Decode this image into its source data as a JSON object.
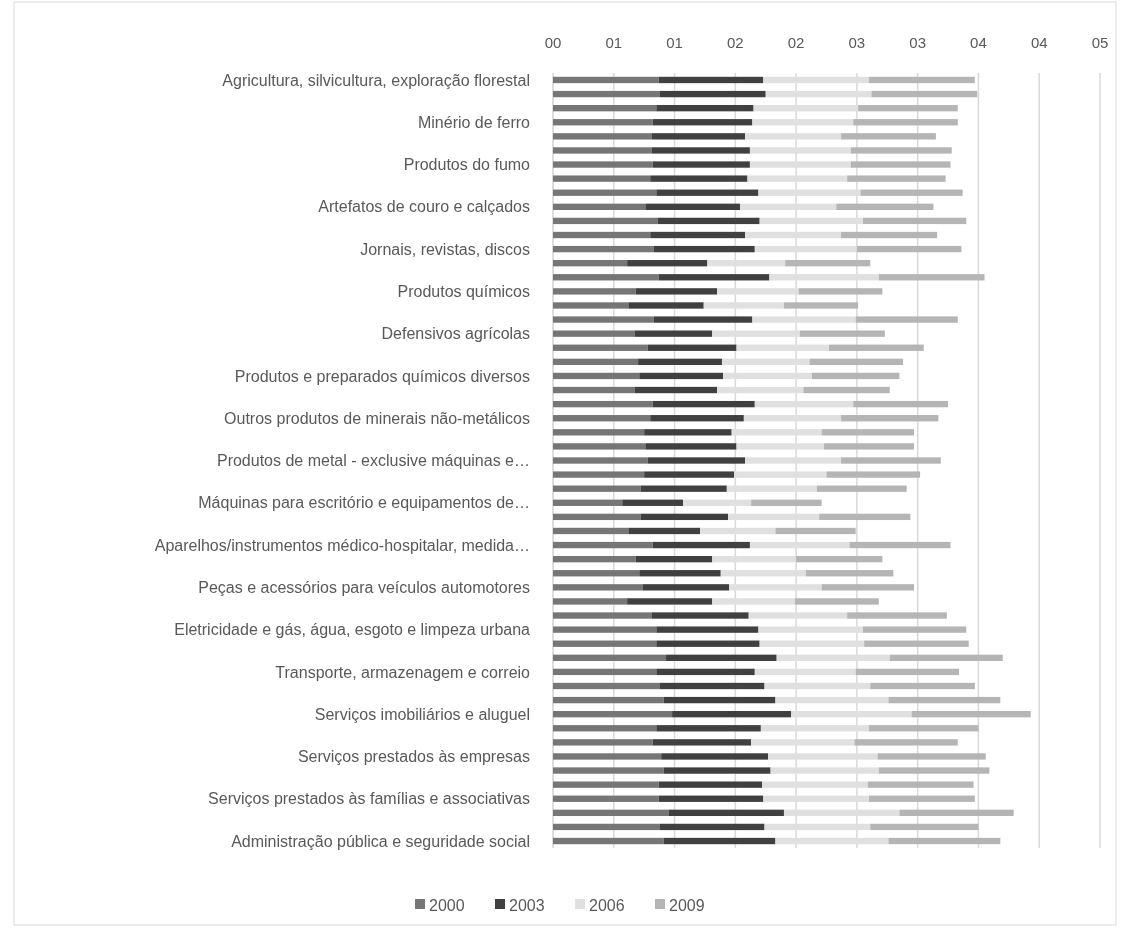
{
  "chart_data": {
    "type": "bar",
    "orientation": "horizontal",
    "stacked": true,
    "categories": [
      "Agricultura, silvicultura, exploração florestal",
      null,
      null,
      "Minério de ferro",
      null,
      null,
      "Produtos do fumo",
      null,
      null,
      "Artefatos de couro e calçados",
      null,
      null,
      "Jornais, revistas, discos",
      null,
      null,
      "Produtos  químicos",
      null,
      null,
      "Defensivos agrícolas",
      null,
      null,
      "Produtos e preparados químicos diversos",
      null,
      null,
      "Outros produtos de minerais não-metálicos",
      null,
      null,
      "Produtos de metal - exclusive máquinas e…",
      null,
      null,
      "Máquinas para escritório e equipamentos de…",
      null,
      null,
      "Aparelhos/instrumentos médico-hospitalar, medida…",
      null,
      null,
      "Peças e acessórios para veículos automotores",
      null,
      null,
      "Eletricidade e gás, água, esgoto e limpeza urbana",
      null,
      null,
      "Transporte, armazenagem e correio",
      null,
      null,
      "Serviços imobiliários e aluguel",
      null,
      null,
      "Serviços prestados às empresas",
      null,
      null,
      "Serviços prestados às famílias e associativas",
      null,
      null,
      "Administração pública e seguridade social"
    ],
    "series": [
      {
        "name": "2000",
        "color": "#767676",
        "values": [
          0.87,
          0.88,
          0.85,
          0.82,
          0.81,
          0.81,
          0.82,
          0.8,
          0.85,
          0.76,
          0.86,
          0.8,
          0.83,
          0.61,
          0.87,
          0.68,
          0.62,
          0.83,
          0.67,
          0.78,
          0.7,
          0.71,
          0.67,
          0.82,
          0.8,
          0.75,
          0.76,
          0.78,
          0.75,
          0.72,
          0.57,
          0.72,
          0.62,
          0.82,
          0.68,
          0.71,
          0.74,
          0.61,
          0.81,
          0.85,
          0.85,
          0.93,
          0.85,
          0.88,
          0.91,
          0.98,
          0.85,
          0.82,
          0.89,
          0.91,
          0.87,
          0.87,
          0.95,
          0.88,
          0.91
        ]
      },
      {
        "name": "2003",
        "color": "#404040",
        "values": [
          0.86,
          0.87,
          0.8,
          0.82,
          0.77,
          0.81,
          0.8,
          0.8,
          0.84,
          0.78,
          0.84,
          0.78,
          0.83,
          0.66,
          0.91,
          0.67,
          0.62,
          0.81,
          0.64,
          0.73,
          0.69,
          0.69,
          0.68,
          0.84,
          0.77,
          0.72,
          0.75,
          0.8,
          0.74,
          0.71,
          0.5,
          0.72,
          0.59,
          0.8,
          0.63,
          0.67,
          0.71,
          0.7,
          0.8,
          0.84,
          0.85,
          0.91,
          0.81,
          0.86,
          0.92,
          0.98,
          0.86,
          0.81,
          0.88,
          0.88,
          0.85,
          0.86,
          0.95,
          0.86,
          0.92
        ]
      },
      {
        "name": "2006",
        "color": "#e0e0e0",
        "values": [
          0.87,
          0.87,
          0.86,
          0.83,
          0.79,
          0.83,
          0.83,
          0.82,
          0.84,
          0.79,
          0.85,
          0.79,
          0.84,
          0.64,
          0.9,
          0.67,
          0.66,
          0.85,
          0.72,
          0.76,
          0.72,
          0.73,
          0.71,
          0.81,
          0.8,
          0.74,
          0.72,
          0.79,
          0.76,
          0.74,
          0.56,
          0.75,
          0.62,
          0.82,
          0.69,
          0.7,
          0.76,
          0.68,
          0.81,
          0.86,
          0.86,
          0.93,
          0.83,
          0.87,
          0.93,
          0.99,
          0.89,
          0.85,
          0.9,
          0.89,
          0.87,
          0.87,
          0.95,
          0.87,
          0.93
        ]
      },
      {
        "name": "2009",
        "color": "#b5b5b5",
        "values": [
          0.87,
          0.87,
          0.82,
          0.86,
          0.78,
          0.83,
          0.82,
          0.81,
          0.84,
          0.8,
          0.85,
          0.79,
          0.86,
          0.7,
          0.87,
          0.69,
          0.61,
          0.84,
          0.7,
          0.78,
          0.77,
          0.72,
          0.71,
          0.78,
          0.8,
          0.76,
          0.74,
          0.82,
          0.77,
          0.74,
          0.58,
          0.75,
          0.66,
          0.83,
          0.71,
          0.72,
          0.76,
          0.69,
          0.82,
          0.85,
          0.86,
          0.93,
          0.85,
          0.86,
          0.92,
          0.98,
          0.9,
          0.85,
          0.89,
          0.91,
          0.87,
          0.87,
          0.94,
          0.89,
          0.92
        ]
      }
    ],
    "xlim": [
      0,
      4.5
    ],
    "xticks": [
      {
        "value": 0,
        "label": "00"
      },
      {
        "value": 0.5,
        "label": "01"
      },
      {
        "value": 1,
        "label": "01"
      },
      {
        "value": 1.5,
        "label": "02"
      },
      {
        "value": 2,
        "label": "02"
      },
      {
        "value": 2.5,
        "label": "03"
      },
      {
        "value": 3,
        "label": "03"
      },
      {
        "value": 3.5,
        "label": "04"
      },
      {
        "value": 4,
        "label": "04"
      },
      {
        "value": 4.5,
        "label": "05"
      }
    ],
    "grid": "x",
    "legend": "bottom"
  }
}
